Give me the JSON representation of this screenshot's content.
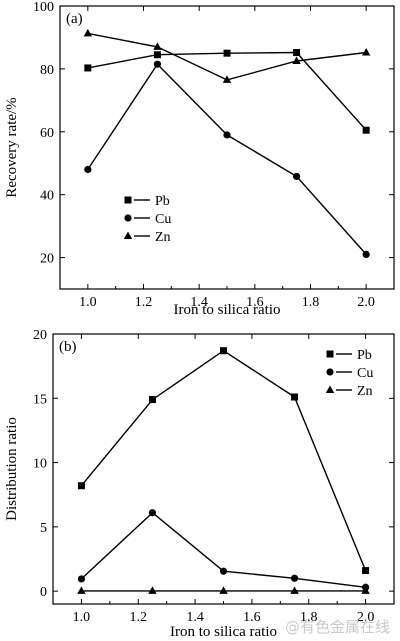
{
  "chart_data": [
    {
      "type": "line",
      "panel_label": "(a)",
      "xlabel": "Iron to silica ratio",
      "ylabel": "Recovery rate/%",
      "x": [
        1.0,
        1.25,
        1.5,
        1.75,
        2.0
      ],
      "xlim": [
        0.9,
        2.1
      ],
      "ylim": [
        10,
        100
      ],
      "xticks": [
        "1.0",
        "1.2",
        "1.4",
        "1.6",
        "1.8",
        "2.0"
      ],
      "yticks": [
        "20",
        "40",
        "60",
        "80",
        "100"
      ],
      "grid": false,
      "legend_position": "lower-left",
      "series": [
        {
          "name": "Pb",
          "marker": "square",
          "values": [
            80.3,
            84.5,
            85.0,
            85.2,
            60.5
          ]
        },
        {
          "name": "Cu",
          "marker": "circle",
          "values": [
            48.0,
            81.5,
            59.0,
            45.8,
            21.0
          ]
        },
        {
          "name": "Zn",
          "marker": "triangle",
          "values": [
            91.3,
            87.0,
            76.5,
            82.5,
            85.2
          ]
        }
      ]
    },
    {
      "type": "line",
      "panel_label": "(b)",
      "xlabel": "Iron to silica ratio",
      "ylabel": "Distribution ratio",
      "x": [
        1.0,
        1.25,
        1.5,
        1.75,
        2.0
      ],
      "xlim": [
        0.9,
        2.1
      ],
      "ylim": [
        -1,
        20
      ],
      "xticks": [
        "1.0",
        "1.2",
        "1.4",
        "1.6",
        "1.8",
        "2.0"
      ],
      "yticks": [
        "0",
        "5",
        "10",
        "15",
        "20"
      ],
      "grid": false,
      "legend_position": "top-right",
      "series": [
        {
          "name": "Pb",
          "marker": "square",
          "values": [
            8.2,
            14.9,
            18.7,
            15.1,
            1.6
          ]
        },
        {
          "name": "Cu",
          "marker": "circle",
          "values": [
            0.95,
            6.1,
            1.55,
            1.0,
            0.3
          ]
        },
        {
          "name": "Zn",
          "marker": "triangle",
          "values": [
            0.02,
            0.02,
            0.02,
            0.02,
            0.02
          ]
        }
      ]
    }
  ],
  "watermark": "@有色金属在线"
}
